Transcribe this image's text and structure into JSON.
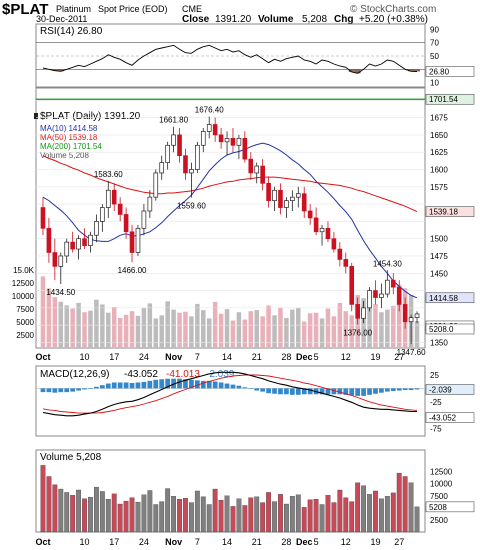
{
  "header": {
    "symbol": "$PLAT",
    "name": "Platinum",
    "source": "Spot Price (EOD)",
    "exchange": "CME",
    "watermark": "© StockCharts.com",
    "date": "30-Dec-2011",
    "close_label": "Close",
    "close_value": "1391.20",
    "volume_label": "Volume",
    "volume_value": "5,208",
    "chg_label": "Chg",
    "chg_value": "+5.20 (+0.38%)"
  },
  "colors": {
    "up": "#222222",
    "down": "#cc1122",
    "ma10": "#2233aa",
    "ma50": "#dd1111",
    "ma200": "#119911",
    "vol_up": "#808080",
    "vol_down": "#c84a58",
    "vol_up_light": "#bcbcbc",
    "vol_down_light": "#e8b0b8",
    "macd_hist": "#3388cc",
    "rsi_fill_low": "#8b6b5b",
    "rsi_fill_high": "#77aa77"
  },
  "x_axis": {
    "labels": [
      "Oct",
      "10",
      "17",
      "24",
      "Nov",
      "7",
      "14",
      "21",
      "28",
      "Dec",
      "5",
      "12",
      "19",
      "27"
    ],
    "bold": [
      "Oct",
      "Nov",
      "Dec"
    ]
  },
  "rsi_panel": {
    "label": "RSI(14) 26.80",
    "value_tag": "26.80",
    "axis_ticks": [
      "90",
      "70",
      "50",
      "30",
      "10"
    ]
  },
  "price_panel": {
    "legend_title": "$PLAT (Daily) 1391.20",
    "legend": [
      {
        "text": "MA(10) 1414.58"
      },
      {
        "text": "MA(50) 1539.18"
      },
      {
        "text": "MA(200) 1701.54"
      },
      {
        "text": "Volume 5,208"
      }
    ],
    "axis_ticks": [
      "1700",
      "1675",
      "1650",
      "1625",
      "1600",
      "1575",
      "1550",
      "1525",
      "1500",
      "1475",
      "1450",
      "1425",
      "1400",
      "1375",
      "1350"
    ],
    "vol_axis_ticks": [
      "15.0K",
      "12500",
      "10000",
      "7500",
      "5000",
      "2500"
    ],
    "tags": {
      "ma200": "1701.54",
      "ma50": "1539.18",
      "ma10": "1414.58",
      "close": "1391.20",
      "vol": "5208.0"
    },
    "annotations": [
      "1434.50",
      "1583.60",
      "1466.00",
      "1661.80",
      "1676.40",
      "1559.60",
      "1454.30",
      "1376.00",
      "1347.60"
    ]
  },
  "macd_panel": {
    "label_prefix": "MACD(12,26,9)",
    "macd_value": "-43.052",
    "signal_value": "-41.013",
    "hist_value": "-2.039",
    "axis_ticks": [
      "25",
      "0",
      "-25",
      "-50",
      "-75"
    ],
    "tags": {
      "hist": "-2.039",
      "macd": "-43.052"
    }
  },
  "volume_panel": {
    "label": "Volume 5,208",
    "axis_ticks": [
      "12500",
      "10000",
      "7500",
      "5000",
      "2500"
    ],
    "tag": "5208"
  },
  "chart_data": {
    "type": "candlestick",
    "title": "$PLAT Platinum Spot Price (EOD) CME",
    "days": 64,
    "candles": [
      [
        1545,
        1560,
        1505,
        1515
      ],
      [
        1515,
        1530,
        1465,
        1480
      ],
      [
        1480,
        1500,
        1440,
        1460
      ],
      [
        1460,
        1480,
        1434.5,
        1475
      ],
      [
        1475,
        1500,
        1465,
        1495
      ],
      [
        1495,
        1510,
        1480,
        1485
      ],
      [
        1485,
        1505,
        1470,
        1500
      ],
      [
        1500,
        1515,
        1485,
        1490
      ],
      [
        1490,
        1510,
        1480,
        1505
      ],
      [
        1505,
        1535,
        1495,
        1525
      ],
      [
        1525,
        1550,
        1510,
        1545
      ],
      [
        1545,
        1583.6,
        1530,
        1570
      ],
      [
        1570,
        1580,
        1540,
        1550
      ],
      [
        1550,
        1560,
        1525,
        1535
      ],
      [
        1535,
        1545,
        1500,
        1510
      ],
      [
        1510,
        1520,
        1466,
        1480
      ],
      [
        1480,
        1520,
        1475,
        1515
      ],
      [
        1515,
        1550,
        1505,
        1540
      ],
      [
        1540,
        1570,
        1530,
        1560
      ],
      [
        1560,
        1600,
        1555,
        1595
      ],
      [
        1595,
        1620,
        1585,
        1610
      ],
      [
        1610,
        1640,
        1600,
        1635
      ],
      [
        1635,
        1661.8,
        1625,
        1650
      ],
      [
        1650,
        1660,
        1610,
        1620
      ],
      [
        1620,
        1630,
        1585,
        1595
      ],
      [
        1595,
        1610,
        1559.6,
        1600
      ],
      [
        1600,
        1640,
        1595,
        1635
      ],
      [
        1635,
        1660,
        1625,
        1655
      ],
      [
        1655,
        1676.4,
        1645,
        1665
      ],
      [
        1665,
        1675,
        1640,
        1650
      ],
      [
        1650,
        1660,
        1630,
        1640
      ],
      [
        1640,
        1655,
        1620,
        1645
      ],
      [
        1645,
        1660,
        1625,
        1635
      ],
      [
        1635,
        1650,
        1615,
        1645
      ],
      [
        1645,
        1655,
        1610,
        1615
      ],
      [
        1615,
        1625,
        1585,
        1595
      ],
      [
        1595,
        1610,
        1580,
        1605
      ],
      [
        1605,
        1615,
        1570,
        1580
      ],
      [
        1580,
        1590,
        1545,
        1555
      ],
      [
        1555,
        1575,
        1540,
        1570
      ],
      [
        1570,
        1580,
        1535,
        1545
      ],
      [
        1545,
        1560,
        1530,
        1555
      ],
      [
        1555,
        1570,
        1540,
        1560
      ],
      [
        1560,
        1575,
        1545,
        1565
      ],
      [
        1565,
        1575,
        1530,
        1540
      ],
      [
        1540,
        1550,
        1520,
        1530
      ],
      [
        1530,
        1545,
        1505,
        1510
      ],
      [
        1510,
        1520,
        1490,
        1515
      ],
      [
        1515,
        1525,
        1495,
        1500
      ],
      [
        1500,
        1510,
        1480,
        1485
      ],
      [
        1485,
        1495,
        1460,
        1470
      ],
      [
        1470,
        1480,
        1450,
        1460
      ],
      [
        1460,
        1465,
        1395,
        1405
      ],
      [
        1405,
        1415,
        1376,
        1385
      ],
      [
        1385,
        1410,
        1378,
        1400
      ],
      [
        1400,
        1430,
        1395,
        1425
      ],
      [
        1425,
        1440,
        1405,
        1415
      ],
      [
        1415,
        1435,
        1400,
        1420
      ],
      [
        1420,
        1454.3,
        1415,
        1440
      ],
      [
        1440,
        1450,
        1420,
        1430
      ],
      [
        1430,
        1440,
        1395,
        1405
      ],
      [
        1405,
        1415,
        1370,
        1380
      ],
      [
        1380,
        1390,
        1347.6,
        1386
      ],
      [
        1386,
        1395,
        1378,
        1391.2
      ]
    ],
    "ma10": [
      1560,
      1555,
      1548,
      1541,
      1533,
      1523,
      1512,
      1505,
      1499,
      1497,
      1496,
      1496,
      1500,
      1505,
      1507,
      1504,
      1504,
      1507,
      1510,
      1516,
      1523,
      1532,
      1540,
      1548,
      1555,
      1563,
      1574,
      1586,
      1598,
      1607,
      1615,
      1621,
      1624,
      1626,
      1629,
      1633,
      1636,
      1638,
      1636,
      1632,
      1627,
      1621,
      1614,
      1608,
      1600,
      1593,
      1583,
      1575,
      1567,
      1558,
      1548,
      1539,
      1528,
      1512,
      1497,
      1484,
      1472,
      1460,
      1450,
      1439,
      1431,
      1424,
      1418,
      1414.58
    ],
    "ma50": [
      1620,
      1616,
      1613,
      1609,
      1606,
      1602,
      1599,
      1595,
      1592,
      1588,
      1585,
      1582,
      1579,
      1576,
      1573,
      1571,
      1569,
      1567,
      1566,
      1565,
      1565,
      1566,
      1566,
      1567,
      1568,
      1569,
      1571,
      1573,
      1576,
      1578,
      1580,
      1582,
      1583,
      1585,
      1586,
      1587,
      1588,
      1589,
      1589,
      1589,
      1588,
      1587,
      1586,
      1585,
      1584,
      1583,
      1581,
      1580,
      1579,
      1578,
      1577,
      1575,
      1573,
      1570,
      1568,
      1565,
      1562,
      1559,
      1556,
      1553,
      1550,
      1547,
      1543,
      1539.18
    ],
    "ma200_value": 1701.54,
    "volume": [
      13800,
      11500,
      9800,
      8900,
      8200,
      7600,
      8700,
      6900,
      7200,
      9300,
      8400,
      6800,
      7900,
      5800,
      6400,
      7100,
      6200,
      7700,
      8600,
      5700,
      6300,
      9000,
      7400,
      6800,
      7000,
      6100,
      8500,
      7300,
      5700,
      8900,
      6600,
      7500,
      5300,
      6900,
      5500,
      7100,
      7300,
      6100,
      8200,
      6300,
      7800,
      5800,
      7400,
      7700,
      5100,
      6700,
      6800,
      5700,
      7600,
      6100,
      8700,
      7100,
      6300,
      10200,
      9600,
      7800,
      8500,
      6900,
      7400,
      8100,
      12200,
      11500,
      10200,
      5208
    ],
    "macd": [
      -45,
      -47,
      -49,
      -50,
      -51,
      -51,
      -50,
      -48,
      -46,
      -43,
      -39,
      -34,
      -30,
      -27,
      -25,
      -24,
      -21,
      -17,
      -12,
      -7,
      -2,
      3,
      8,
      12,
      15,
      18,
      21,
      24,
      27,
      29,
      30,
      30,
      30,
      29,
      27,
      24,
      21,
      18,
      14,
      11,
      8,
      6,
      3,
      1,
      -1,
      -3,
      -6,
      -9,
      -12,
      -15,
      -18,
      -22,
      -26,
      -31,
      -35,
      -37,
      -38,
      -39,
      -39,
      -40,
      -41,
      -42,
      -43,
      -43.05
    ],
    "signal": [
      -38,
      -40,
      -41,
      -43,
      -44,
      -45,
      -46,
      -46,
      -46,
      -46,
      -45,
      -43,
      -41,
      -38,
      -36,
      -34,
      -32,
      -29,
      -26,
      -23,
      -19,
      -15,
      -10,
      -6,
      -2,
      2,
      6,
      10,
      13,
      16,
      19,
      21,
      23,
      24,
      25,
      25,
      25,
      24,
      23,
      21,
      19,
      17,
      15,
      13,
      10,
      8,
      5,
      2,
      -1,
      -4,
      -7,
      -10,
      -13,
      -17,
      -21,
      -25,
      -28,
      -31,
      -33,
      -35,
      -37,
      -39,
      -40,
      -41.01
    ],
    "rsi": [
      32,
      30,
      28,
      27,
      30,
      33,
      36,
      34,
      38,
      42,
      46,
      52,
      48,
      45,
      40,
      36,
      44,
      50,
      55,
      60,
      62,
      64,
      66,
      60,
      55,
      54,
      60,
      64,
      66,
      62,
      58,
      60,
      56,
      58,
      52,
      48,
      52,
      46,
      40,
      45,
      42,
      46,
      48,
      50,
      44,
      42,
      38,
      44,
      42,
      38,
      35,
      33,
      26,
      24,
      30,
      38,
      35,
      38,
      44,
      42,
      36,
      30,
      27,
      26.8
    ]
  }
}
